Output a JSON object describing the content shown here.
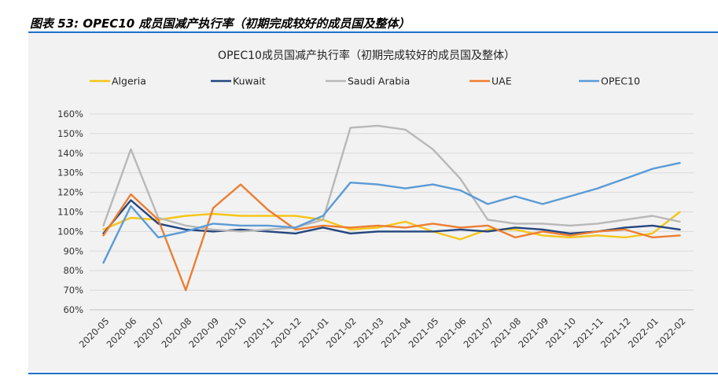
{
  "header": {
    "title": "图表 53:  OPEC10 成员国减产执行率（初期完成较好的成员国及整体）"
  },
  "chart_data": {
    "type": "line",
    "title": "OPEC10成员国减产执行率（初期完成较好的成员国及整体）",
    "xlabel": "",
    "ylabel": "",
    "ylim": [
      0.6,
      1.6
    ],
    "yticks": [
      "160%",
      "150%",
      "140%",
      "130%",
      "120%",
      "110%",
      "100%",
      "90%",
      "80%",
      "70%",
      "60%"
    ],
    "grid": true,
    "legend_position": "top",
    "categories": [
      "2020-05",
      "2020-06",
      "2020-07",
      "2020-08",
      "2020-09",
      "2020-10",
      "2020-11",
      "2020-12",
      "2021-01",
      "2021-02",
      "2021-03",
      "2021-04",
      "2021-05",
      "2021-06",
      "2021-07",
      "2021-08",
      "2021-09",
      "2021-10",
      "2021-11",
      "2021-12",
      "2022-01",
      "2022-02"
    ],
    "series": [
      {
        "name": "Algeria",
        "color": "#f5c518",
        "values": [
          1.01,
          1.07,
          1.06,
          1.08,
          1.09,
          1.08,
          1.08,
          1.08,
          1.06,
          1.01,
          1.02,
          1.05,
          1.0,
          0.96,
          1.01,
          1.01,
          0.98,
          0.97,
          0.98,
          0.97,
          0.99,
          1.1
        ]
      },
      {
        "name": "Kuwait",
        "color": "#23467f",
        "values": [
          0.99,
          1.16,
          1.04,
          1.01,
          1.0,
          1.01,
          1.0,
          0.99,
          1.02,
          0.99,
          1.0,
          1.0,
          1.0,
          1.01,
          1.0,
          1.02,
          1.01,
          0.99,
          1.0,
          1.02,
          1.03,
          1.01
        ]
      },
      {
        "name": "Saudi Arabia",
        "color": "#b8b8b8",
        "values": [
          1.03,
          1.42,
          1.07,
          1.03,
          1.01,
          1.0,
          1.01,
          1.02,
          1.06,
          1.53,
          1.54,
          1.52,
          1.42,
          1.27,
          1.06,
          1.04,
          1.04,
          1.03,
          1.04,
          1.06,
          1.08,
          1.05
        ]
      },
      {
        "name": "UAE",
        "color": "#ed7d31",
        "values": [
          0.98,
          1.19,
          1.06,
          0.7,
          1.12,
          1.24,
          1.11,
          1.01,
          1.03,
          1.02,
          1.03,
          1.02,
          1.04,
          1.02,
          1.03,
          0.97,
          1.0,
          0.98,
          1.0,
          1.01,
          0.97,
          0.98
        ]
      },
      {
        "name": "OPEC10",
        "color": "#5b9bd5",
        "values": [
          0.84,
          1.13,
          0.97,
          1.0,
          1.04,
          1.03,
          1.03,
          1.02,
          1.08,
          1.25,
          1.24,
          1.22,
          1.24,
          1.21,
          1.14,
          1.18,
          1.14,
          1.18,
          1.22,
          1.27,
          1.32,
          1.35
        ]
      }
    ]
  }
}
